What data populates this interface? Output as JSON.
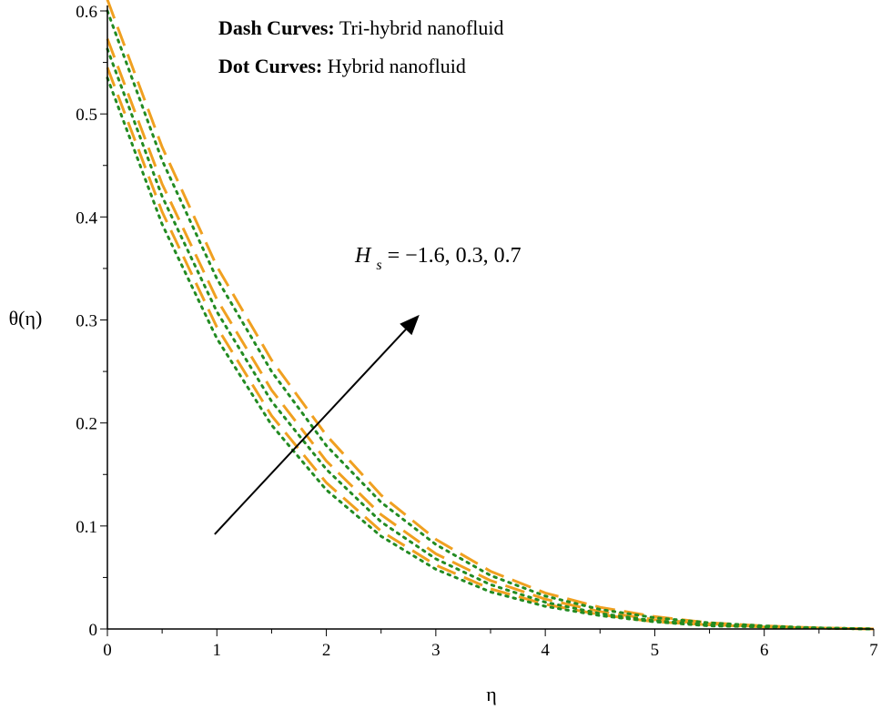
{
  "chart_data": {
    "type": "line",
    "xlabel": "η",
    "ylabel": "θ(η)",
    "xlim": [
      0,
      7
    ],
    "ylim": [
      0,
      0.6
    ],
    "x_ticks": [
      "0",
      "1",
      "2",
      "3",
      "4",
      "5",
      "6",
      "7"
    ],
    "y_ticks": [
      "0",
      "0.1",
      "0.2",
      "0.3",
      "0.4",
      "0.5",
      "0.6"
    ],
    "grid": false,
    "legend_lines": [
      {
        "bold": "Dash Curves:",
        "text": "Tri-hybrid nanofluid"
      },
      {
        "bold": "Dot Curves:",
        "text": "Hybrid nanofluid"
      }
    ],
    "annotation": {
      "symbol": "H",
      "subscript": "s",
      "text": " = −1.6, 0.3, 0.7"
    },
    "colors": {
      "dash": "#f0a020",
      "dot": "#228b22",
      "arrow": "#000000",
      "axis": "#000000"
    },
    "x": [
      0,
      0.5,
      1,
      1.5,
      2,
      2.5,
      3,
      3.5,
      4,
      4.5,
      5,
      5.5,
      6,
      6.5,
      7
    ],
    "series": [
      {
        "style": "dash",
        "values": [
          0.611,
          0.468,
          0.352,
          0.261,
          0.188,
          0.13,
          0.087,
          0.056,
          0.035,
          0.021,
          0.012,
          0.006,
          0.003,
          0.001,
          0
        ]
      },
      {
        "style": "dash",
        "values": [
          0.573,
          0.432,
          0.32,
          0.232,
          0.163,
          0.111,
          0.073,
          0.047,
          0.029,
          0.017,
          0.009,
          0.005,
          0.002,
          0.001,
          0
        ]
      },
      {
        "style": "dash",
        "values": [
          0.545,
          0.405,
          0.293,
          0.207,
          0.142,
          0.095,
          0.062,
          0.039,
          0.024,
          0.014,
          0.007,
          0.004,
          0.002,
          0.001,
          0
        ]
      },
      {
        "style": "dot",
        "values": [
          0.6,
          0.455,
          0.34,
          0.25,
          0.178,
          0.123,
          0.082,
          0.052,
          0.032,
          0.019,
          0.011,
          0.006,
          0.003,
          0.001,
          0
        ]
      },
      {
        "style": "dot",
        "values": [
          0.563,
          0.42,
          0.308,
          0.221,
          0.155,
          0.104,
          0.068,
          0.043,
          0.026,
          0.015,
          0.008,
          0.004,
          0.002,
          0.001,
          0
        ]
      },
      {
        "style": "dot",
        "values": [
          0.535,
          0.393,
          0.282,
          0.198,
          0.135,
          0.09,
          0.058,
          0.036,
          0.022,
          0.013,
          0.007,
          0.003,
          0.002,
          0.001,
          0
        ]
      }
    ],
    "arrow": {
      "from": [
        0.98,
        0.092
      ],
      "to": [
        2.85,
        0.305
      ]
    }
  }
}
